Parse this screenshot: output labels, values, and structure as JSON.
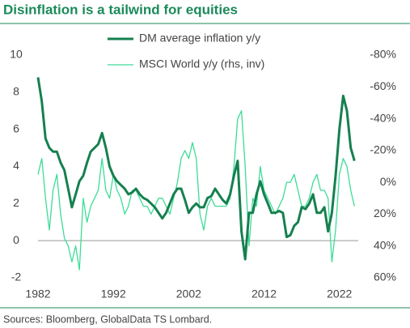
{
  "chart_data": {
    "type": "line",
    "title": "Disinflation is a tailwind for equities",
    "source": "Sources: Bloomberg, GlobalData TS Lombard.",
    "x": [
      1982,
      1982.5,
      1983,
      1983.5,
      1984,
      1984.5,
      1985,
      1985.5,
      1986,
      1986.5,
      1987,
      1987.5,
      1988,
      1988.5,
      1989,
      1989.5,
      1990,
      1990.5,
      1991,
      1991.5,
      1992,
      1992.5,
      1993,
      1993.5,
      1994,
      1994.5,
      1995,
      1995.5,
      1996,
      1996.5,
      1997,
      1997.5,
      1998,
      1998.5,
      1999,
      1999.5,
      2000,
      2000.5,
      2001,
      2001.5,
      2002,
      2002.5,
      2003,
      2003.5,
      2004,
      2004.5,
      2005,
      2005.5,
      2006,
      2006.5,
      2007,
      2007.5,
      2008,
      2008.5,
      2009,
      2009.5,
      2010,
      2010.5,
      2011,
      2011.5,
      2012,
      2012.5,
      2013,
      2013.5,
      2014,
      2014.5,
      2015,
      2015.5,
      2016,
      2016.5,
      2017,
      2017.5,
      2018,
      2018.5,
      2019,
      2019.5,
      2020,
      2020.5,
      2021,
      2021.5,
      2022,
      2022.5,
      2023,
      2023.5,
      2024
    ],
    "series": [
      {
        "name": "DM average inflation y/y",
        "color": "#16804f",
        "width": 3,
        "values": [
          8.8,
          7.5,
          5.5,
          5.0,
          4.8,
          4.8,
          4.2,
          3.8,
          2.8,
          1.8,
          2.5,
          3.2,
          3.5,
          4.2,
          4.8,
          5.0,
          5.2,
          5.8,
          5.0,
          4.0,
          3.5,
          3.2,
          3.0,
          2.8,
          2.5,
          2.6,
          2.8,
          2.5,
          2.3,
          2.2,
          2.0,
          1.8,
          1.5,
          1.2,
          1.5,
          2.0,
          2.5,
          2.8,
          2.8,
          2.2,
          1.5,
          1.8,
          2.0,
          1.8,
          1.8,
          2.3,
          2.4,
          2.8,
          2.5,
          2.2,
          2.0,
          2.5,
          3.5,
          4.3,
          0.5,
          -1.0,
          1.5,
          1.5,
          2.5,
          3.2,
          2.5,
          2.0,
          1.5,
          1.5,
          1.6,
          1.5,
          0.2,
          0.3,
          0.8,
          1.0,
          1.8,
          1.7,
          2.0,
          2.5,
          1.5,
          1.5,
          1.8,
          0.5,
          1.5,
          3.5,
          6.0,
          7.8,
          7.0,
          5.0,
          4.3
        ]
      },
      {
        "name": "MSCI World y/y (rhs, inv)",
        "color": "#3ddc97",
        "width": 1.3,
        "axis": "y2",
        "values": [
          -5,
          -15,
          10,
          30,
          5,
          -5,
          20,
          35,
          40,
          50,
          40,
          55,
          10,
          25,
          15,
          10,
          5,
          -15,
          5,
          10,
          -5,
          5,
          10,
          20,
          15,
          5,
          5,
          10,
          15,
          15,
          20,
          15,
          10,
          10,
          15,
          20,
          10,
          0,
          -15,
          -20,
          -15,
          -25,
          -15,
          20,
          30,
          15,
          10,
          15,
          15,
          15,
          15,
          10,
          -10,
          -40,
          -45,
          -10,
          40,
          10,
          15,
          -10,
          5,
          10,
          15,
          20,
          15,
          10,
          0,
          0,
          -5,
          5,
          15,
          15,
          10,
          0,
          -5,
          5,
          5,
          10,
          50,
          30,
          -5,
          -15,
          -10,
          5,
          15
        ]
      }
    ],
    "xlim": [
      1982,
      2024.5
    ],
    "xticks": [
      1982,
      1992,
      2002,
      2012,
      2022
    ],
    "ylim": [
      -2,
      10
    ],
    "yticks": [
      10,
      8,
      6,
      4,
      2,
      0,
      -2
    ],
    "y2lim": [
      -80,
      60
    ],
    "y2_inverted": true,
    "y2ticks": [
      {
        "value": -80,
        "label": "-80%"
      },
      {
        "value": -60,
        "label": "-60%"
      },
      {
        "value": -40,
        "label": "-40%"
      },
      {
        "value": -20,
        "label": "-20%"
      },
      {
        "value": 0,
        "label": "0%"
      },
      {
        "value": 20,
        "label": "20%"
      },
      {
        "value": 40,
        "label": "40%"
      },
      {
        "value": 60,
        "label": "60%"
      }
    ]
  }
}
